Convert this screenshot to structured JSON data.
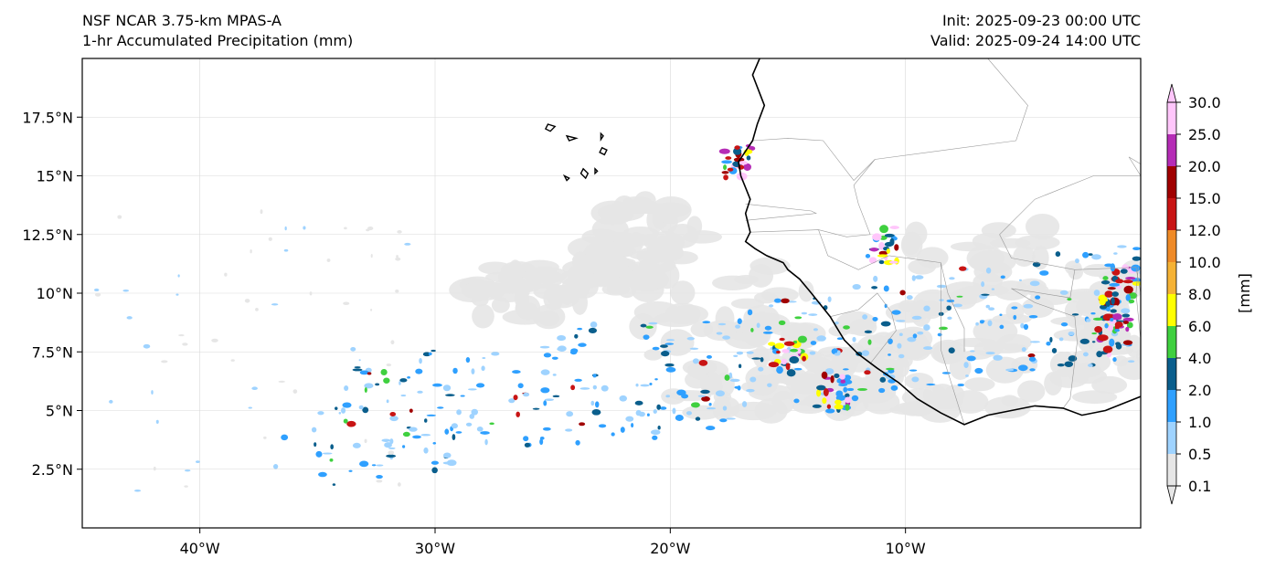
{
  "title": {
    "model": "NSF NCAR 3.75-km MPAS-A",
    "field": "1-hr Accumulated Precipitation (mm)",
    "init": "Init: 2025-09-23 00:00 UTC",
    "valid": "Valid: 2025-09-24 14:00 UTC"
  },
  "axes": {
    "lon_range": [
      -45,
      0
    ],
    "lat_range": [
      0,
      20
    ],
    "lon_ticks": [
      {
        "value": -40,
        "label": "40°W"
      },
      {
        "value": -30,
        "label": "30°W"
      },
      {
        "value": -20,
        "label": "20°W"
      },
      {
        "value": -10,
        "label": "10°W"
      }
    ],
    "lat_ticks": [
      {
        "value": 2.5,
        "label": "2.5°N"
      },
      {
        "value": 5,
        "label": "5°N"
      },
      {
        "value": 7.5,
        "label": "7.5°N"
      },
      {
        "value": 10,
        "label": "10°N"
      },
      {
        "value": 12.5,
        "label": "12.5°N"
      },
      {
        "value": 15,
        "label": "15°N"
      },
      {
        "value": 17.5,
        "label": "17.5°N"
      }
    ],
    "grid": true
  },
  "colorbar": {
    "unit_label": "[mm]",
    "levels": [
      "0.1",
      "0.5",
      "1.0",
      "2.0",
      "4.0",
      "6.0",
      "8.0",
      "10.0",
      "12.0",
      "15.0",
      "20.0",
      "25.0",
      "30.0"
    ],
    "colors": [
      "#e6e6e6",
      "#9fd3ff",
      "#2fa0ff",
      "#0a5e8c",
      "#3fd03f",
      "#ffff00",
      "#f5b235",
      "#ef8a27",
      "#c81414",
      "#a00000",
      "#b52cb6",
      "#ffc6fb"
    ],
    "extend": "both"
  },
  "colors": {
    "coastline": "#000000",
    "borders": "#999999",
    "gridlines": "#d9d9d9"
  },
  "map_data": {
    "coastline_west_africa": [
      [
        -16.2,
        20
      ],
      [
        -16.5,
        19.3
      ],
      [
        -16.0,
        18.0
      ],
      [
        -16.3,
        17.2
      ],
      [
        -16.5,
        16.5
      ],
      [
        -17.1,
        15.6
      ],
      [
        -17.0,
        15.0
      ],
      [
        -16.8,
        14.5
      ],
      [
        -16.6,
        14.0
      ],
      [
        -16.8,
        13.4
      ],
      [
        -16.6,
        12.6
      ],
      [
        -16.8,
        12.2
      ],
      [
        -16.4,
        11.9
      ],
      [
        -15.9,
        11.6
      ],
      [
        -15.2,
        11.3
      ],
      [
        -15.0,
        11.0
      ],
      [
        -14.5,
        10.6
      ],
      [
        -14.0,
        10.0
      ],
      [
        -13.6,
        9.5
      ],
      [
        -13.2,
        9.0
      ],
      [
        -12.9,
        8.5
      ],
      [
        -12.6,
        8.0
      ],
      [
        -12.0,
        7.4
      ],
      [
        -11.2,
        6.8
      ],
      [
        -10.3,
        6.2
      ],
      [
        -9.5,
        5.5
      ],
      [
        -8.5,
        4.9
      ],
      [
        -7.5,
        4.4
      ],
      [
        -6.5,
        4.8
      ],
      [
        -5.5,
        5.0
      ],
      [
        -4.5,
        5.2
      ],
      [
        -3.3,
        5.1
      ],
      [
        -2.5,
        4.8
      ],
      [
        -1.5,
        5.0
      ],
      [
        -0.5,
        5.4
      ],
      [
        0,
        5.6
      ]
    ],
    "islands": [
      {
        "name": "cape-verde-santo-antao",
        "points": [
          [
            -25.2,
            17.2
          ],
          [
            -24.9,
            17.1
          ],
          [
            -25.1,
            16.9
          ],
          [
            -25.3,
            17.0
          ]
        ]
      },
      {
        "name": "cape-verde-sao-nicolau",
        "points": [
          [
            -24.4,
            16.7
          ],
          [
            -24.0,
            16.6
          ],
          [
            -24.3,
            16.5
          ]
        ]
      },
      {
        "name": "cape-verde-sal",
        "points": [
          [
            -22.95,
            16.8
          ],
          [
            -22.85,
            16.7
          ],
          [
            -22.95,
            16.55
          ]
        ]
      },
      {
        "name": "cape-verde-boa-vista",
        "points": [
          [
            -22.9,
            16.2
          ],
          [
            -22.7,
            16.1
          ],
          [
            -22.8,
            15.9
          ],
          [
            -23.0,
            16.0
          ]
        ]
      },
      {
        "name": "cape-verde-santiago",
        "points": [
          [
            -23.7,
            15.3
          ],
          [
            -23.5,
            15.1
          ],
          [
            -23.6,
            14.9
          ],
          [
            -23.8,
            15.1
          ]
        ]
      },
      {
        "name": "cape-verde-fogo",
        "points": [
          [
            -24.5,
            15.0
          ],
          [
            -24.3,
            14.9
          ],
          [
            -24.4,
            14.8
          ]
        ]
      },
      {
        "name": "cape-verde-maio",
        "points": [
          [
            -23.2,
            15.3
          ],
          [
            -23.1,
            15.2
          ],
          [
            -23.2,
            15.1
          ]
        ]
      }
    ],
    "borders": [
      [
        [
          -8.5,
          20
        ],
        [
          -6.5,
          20
        ],
        [
          -4.8,
          18.0
        ],
        [
          -5.3,
          16.5
        ],
        [
          -11.3,
          15.7
        ],
        [
          -12.2,
          14.6
        ],
        [
          -12.0,
          13.8
        ],
        [
          -11.5,
          12.5
        ],
        [
          -12.5,
          12.4
        ],
        [
          -13.7,
          12.7
        ],
        [
          -16.6,
          12.6
        ]
      ],
      [
        [
          -16.5,
          16.5
        ],
        [
          -15.0,
          16.6
        ],
        [
          -13.5,
          16.5
        ],
        [
          -12.2,
          14.8
        ],
        [
          -11.3,
          15.7
        ]
      ],
      [
        [
          -16.8,
          13.8
        ],
        [
          -14.0,
          13.5
        ],
        [
          -13.8,
          13.4
        ],
        [
          -16.8,
          13.1
        ]
      ],
      [
        [
          -13.7,
          12.7
        ],
        [
          -13.3,
          11.6
        ],
        [
          -12.0,
          11.0
        ],
        [
          -10.7,
          11.6
        ],
        [
          -8.5,
          11.3
        ],
        [
          -8.2,
          10.0
        ],
        [
          -7.5,
          8.5
        ],
        [
          -7.5,
          7.5
        ]
      ],
      [
        [
          -13.2,
          9.0
        ],
        [
          -12.0,
          9.3
        ],
        [
          -11.2,
          10.0
        ],
        [
          -10.6,
          9.2
        ],
        [
          -10.4,
          8.4
        ],
        [
          -11.5,
          7.0
        ],
        [
          -11.2,
          6.8
        ]
      ],
      [
        [
          -8.5,
          11.3
        ],
        [
          -8.5,
          7.6
        ],
        [
          -7.5,
          4.4
        ]
      ],
      [
        [
          -5.5,
          10.2
        ],
        [
          -3.0,
          9.8
        ],
        [
          -2.8,
          11.0
        ],
        [
          -0.2,
          11.1
        ],
        [
          0,
          10.0
        ]
      ],
      [
        [
          -5.5,
          10.2
        ],
        [
          -4.5,
          9.6
        ],
        [
          -2.8,
          9.0
        ],
        [
          -2.7,
          7.9
        ],
        [
          -3.0,
          5.5
        ],
        [
          -3.3,
          5.1
        ]
      ],
      [
        [
          -2.8,
          11.0
        ],
        [
          -5.5,
          11.5
        ],
        [
          -6.0,
          12.5
        ],
        [
          -4.5,
          14.0
        ],
        [
          -2.0,
          15.0
        ],
        [
          0,
          15.0
        ]
      ],
      [
        [
          -0.1,
          11.1
        ],
        [
          -0.2,
          10.0
        ],
        [
          0,
          8.0
        ]
      ],
      [
        [
          0,
          15.0
        ],
        [
          -0.5,
          15.8
        ],
        [
          0,
          15.5
        ]
      ]
    ]
  }
}
